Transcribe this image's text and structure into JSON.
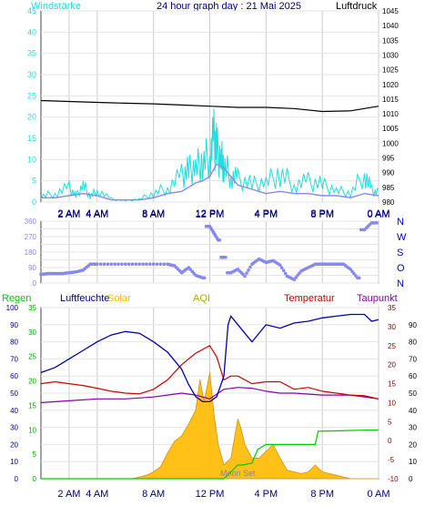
{
  "header": {
    "title": "24 hour graph day : 21 Mai 2025",
    "left_label": "Windstärke",
    "right_label": "Luftdruck"
  },
  "colors": {
    "wind": "#22dddd",
    "gust": "#8888ee",
    "pressure": "#000000",
    "direction": "#8888ee",
    "humidity": "#0000aa",
    "temperature": "#cc0000",
    "dewpoint": "#8800aa",
    "rain": "#00cc00",
    "solar": "#ffbb00",
    "bottom_left_axis": "#00aa00",
    "bottom_right_axis": "#880000",
    "aqi": "#aaaa00",
    "moon": "#888888"
  },
  "chart_data": [
    {
      "type": "line",
      "name": "wind-pressure",
      "x_ticks": [
        "2 AM",
        "4 AM",
        "8 AM",
        "12 PM",
        "4 PM",
        "8 PM",
        "0 AM"
      ],
      "x_tick_hours": [
        2,
        4,
        8,
        12,
        16,
        20,
        24
      ],
      "left_axis": {
        "label": "Windstärke",
        "range": [
          0,
          45
        ],
        "ticks": [
          0,
          5,
          10,
          15,
          20,
          25,
          30,
          35,
          40,
          45
        ]
      },
      "right_axis": {
        "label": "Luftdruck",
        "range": [
          980,
          1045
        ],
        "ticks": [
          980,
          985,
          990,
          995,
          1000,
          1005,
          1010,
          1015,
          1020,
          1025,
          1030,
          1035,
          1040,
          1045
        ]
      },
      "series": [
        {
          "name": "Luftdruck",
          "axis": "right",
          "hours": [
            0,
            2,
            4,
            6,
            8,
            10,
            12,
            14,
            16,
            18,
            20,
            22,
            24
          ],
          "values": [
            1014.5,
            1014.2,
            1013.9,
            1013.6,
            1013.4,
            1013.0,
            1012.6,
            1012.2,
            1012.2,
            1011.8,
            1010.8,
            1011.0,
            1012.6
          ]
        },
        {
          "axis": "left",
          "hours": [
            0,
            1,
            2,
            3,
            4,
            5,
            6,
            7,
            8,
            9,
            10,
            10.5,
            11,
            11.5,
            12,
            12.5,
            13,
            13.5,
            14,
            15,
            16,
            17,
            18,
            19,
            20,
            21,
            22,
            23,
            24
          ],
          "values": [
            1,
            1,
            1.5,
            2,
            1.5,
            0.5,
            0.5,
            0.5,
            1,
            2,
            2.5,
            3.5,
            4.5,
            5,
            6,
            9,
            8,
            6,
            4,
            3,
            2,
            2.5,
            2,
            2,
            1.5,
            1.5,
            1,
            2,
            1.5
          ]
        },
        {
          "axis": "left",
          "hours": [
            0,
            1,
            2,
            2.5,
            3,
            3.5,
            4,
            5,
            6,
            7,
            8,
            9,
            10,
            10.5,
            11,
            11.5,
            12,
            12.3,
            12.5,
            12.8,
            13,
            13.5,
            14,
            15,
            16,
            17,
            18,
            19,
            20,
            21,
            22,
            23,
            23.5,
            24
          ],
          "values": [
            2,
            3,
            5,
            2,
            6,
            2,
            4,
            1,
            0.5,
            1,
            3,
            5,
            9,
            11,
            12,
            14,
            16,
            22,
            18,
            15,
            13,
            9,
            8,
            6,
            7,
            10,
            6,
            7,
            6,
            4,
            3,
            10,
            4,
            3
          ]
        }
      ]
    },
    {
      "type": "scatter",
      "name": "wind-direction",
      "x_ticks": [
        "2 AM",
        "4 AM",
        "8 AM",
        "12 PM",
        "4 PM",
        "8 PM",
        "0 AM"
      ],
      "x_tick_hours": [
        2,
        4,
        8,
        12,
        16,
        20,
        24
      ],
      "left_axis": {
        "range": [
          0,
          360
        ],
        "ticks": [
          0,
          45,
          90,
          135,
          180,
          225,
          270,
          315,
          360
        ]
      },
      "right_axis": {
        "labels": [
          "N",
          "W",
          "S",
          "O",
          "N"
        ],
        "values": [
          360,
          270,
          180,
          90,
          0
        ]
      },
      "series": [
        {
          "axis": "left",
          "hours": [
            0,
            0.5,
            1,
            1.5,
            2,
            2.5,
            3,
            3.5,
            4,
            5,
            6,
            7,
            8,
            9,
            9.5,
            10,
            10.5,
            11,
            11.5,
            12,
            12.3,
            12.6,
            13,
            13.5,
            14,
            14.5,
            15,
            15.5,
            16,
            16.5,
            17,
            17.5,
            18,
            18.5,
            19,
            19.5,
            20,
            20.5,
            21,
            21.5,
            22,
            22.5,
            23,
            23.5,
            24
          ],
          "values": [
            50,
            55,
            55,
            55,
            60,
            65,
            75,
            110,
            110,
            110,
            110,
            110,
            110,
            110,
            100,
            60,
            90,
            45,
            30,
            330,
            290,
            250,
            150,
            60,
            80,
            40,
            110,
            140,
            120,
            130,
            105,
            40,
            20,
            70,
            90,
            110,
            110,
            110,
            110,
            110,
            80,
            30,
            310,
            350,
            350
          ]
        }
      ]
    },
    {
      "type": "line",
      "name": "weather-details",
      "legend": [
        "Regen",
        "Luftfeuchte",
        "Solar",
        "AQI",
        "Temperatur",
        "Taupunkt"
      ],
      "x_ticks": [
        "2 AM",
        "4 AM",
        "8 AM",
        "12 PM",
        "4 PM",
        "8 PM",
        "0 AM"
      ],
      "x_tick_hours": [
        2,
        4,
        8,
        12,
        16,
        20,
        24
      ],
      "axis_humidity": {
        "range": [
          0,
          100
        ],
        "ticks": [
          0,
          10,
          20,
          30,
          40,
          50,
          60,
          70,
          80,
          90,
          100
        ]
      },
      "axis_rain": {
        "range": [
          0,
          35
        ],
        "ticks": [
          0,
          5,
          10,
          15,
          20,
          25,
          30,
          35
        ]
      },
      "axis_temperature": {
        "range": [
          -10,
          35
        ],
        "ticks": [
          -10,
          -5,
          0,
          5,
          10,
          15,
          20,
          25,
          30,
          35
        ]
      },
      "axis_dewpoint": {
        "range": [
          0,
          100
        ],
        "ticks": [
          0,
          10,
          20,
          30,
          40,
          50,
          60,
          70,
          80,
          90
        ]
      },
      "annotations": [
        "Moon Set"
      ],
      "series": [
        {
          "name": "Luftfeuchte",
          "axis": "humidity",
          "hours": [
            0,
            1,
            2,
            3,
            4,
            5,
            6,
            7,
            8,
            9,
            10,
            10.5,
            11,
            11.5,
            12,
            12.5,
            13,
            13.3,
            13.5,
            14,
            14.5,
            15,
            16,
            17,
            18,
            19,
            20,
            21,
            22,
            23,
            23.5,
            24
          ],
          "values": [
            62,
            65,
            70,
            75,
            80,
            84,
            86,
            85,
            80,
            74,
            64,
            55,
            48,
            45,
            45,
            48,
            60,
            90,
            95,
            90,
            85,
            80,
            90,
            88,
            91,
            92,
            94,
            95,
            96,
            96,
            92,
            93
          ]
        },
        {
          "name": "Temperatur",
          "axis": "temperature",
          "hours": [
            0,
            1,
            2,
            3,
            4,
            5,
            6,
            7,
            8,
            9,
            10,
            11,
            12,
            12.5,
            13,
            13.5,
            14,
            15,
            16,
            17,
            18,
            19,
            20,
            21,
            22,
            23,
            24
          ],
          "values": [
            15,
            15.5,
            15,
            14.5,
            13.8,
            13,
            12.5,
            12.3,
            13.5,
            16,
            20,
            23,
            25,
            22,
            16,
            17,
            17,
            15,
            15.5,
            15.5,
            13.5,
            14,
            13,
            12.5,
            12,
            11.8,
            11
          ]
        },
        {
          "name": "Taupunkt",
          "axis": "temperature",
          "hours": [
            0,
            2,
            4,
            6,
            8,
            9,
            10,
            11,
            12,
            13,
            14,
            15,
            16,
            17,
            18,
            20,
            22,
            24
          ],
          "values": [
            10,
            10.5,
            11,
            11,
            11.5,
            12,
            12.5,
            12,
            11,
            13.5,
            14,
            13.8,
            13,
            12.5,
            12.5,
            12,
            12,
            11
          ]
        },
        {
          "name": "Regen",
          "axis": "rain",
          "hours": [
            0,
            13,
            14,
            14.3,
            15,
            15.4,
            16,
            19.5,
            19.7,
            24
          ],
          "values": [
            0,
            0,
            2.8,
            2.8,
            3.2,
            6,
            7,
            7,
            9.7,
            10
          ]
        },
        {
          "name": "Solar",
          "axis": "humidity",
          "hours": [
            0,
            6.5,
            7,
            7.5,
            8,
            8.5,
            9,
            9.5,
            10,
            10.5,
            11,
            11.3,
            11.6,
            12,
            12.3,
            12.6,
            13,
            13.5,
            14,
            14.2,
            14.5,
            15,
            15.5,
            16,
            16.5,
            17,
            17.5,
            18,
            18.5,
            19,
            19.5,
            20,
            20.5,
            21,
            21.5,
            22,
            24
          ],
          "values": [
            0,
            0,
            1,
            2,
            4,
            7,
            15,
            22,
            25,
            32,
            40,
            58,
            45,
            62,
            38,
            20,
            8,
            12,
            35,
            30,
            20,
            12,
            12,
            16,
            20,
            12,
            5,
            4,
            3,
            4,
            8,
            4,
            3,
            2,
            1,
            0,
            0
          ]
        }
      ]
    }
  ]
}
